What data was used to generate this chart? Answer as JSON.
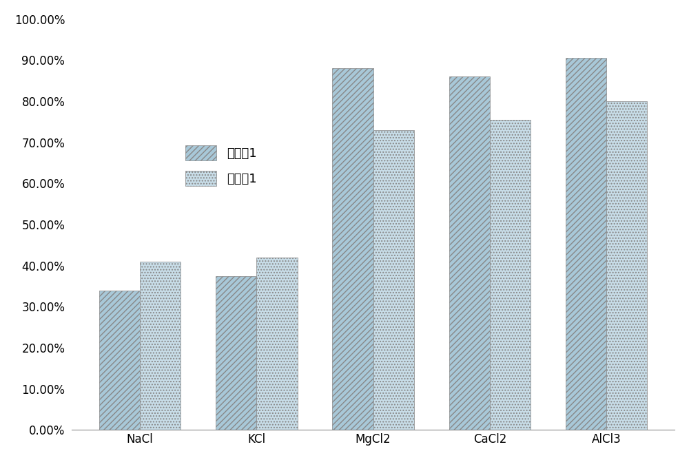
{
  "categories": [
    "NaCl",
    "KCl",
    "MgCl2",
    "CaCl2",
    "AlCl3"
  ],
  "series1_name": "实施例1",
  "series2_name": "对照例1",
  "series1_values": [
    0.34,
    0.375,
    0.88,
    0.86,
    0.905
  ],
  "series2_values": [
    0.41,
    0.42,
    0.73,
    0.755,
    0.8
  ],
  "series1_hatch": "////",
  "series2_hatch": "....",
  "series1_color": "#a8c8d8",
  "series2_color": "#c8dde8",
  "bar_edge_color": "#888888",
  "ylim": [
    0,
    1.0
  ],
  "ytick_step": 0.1,
  "background_color": "#ffffff",
  "legend_fontsize": 13,
  "tick_fontsize": 12,
  "bar_width": 0.35,
  "figsize": [
    10.0,
    6.68
  ],
  "dpi": 100
}
